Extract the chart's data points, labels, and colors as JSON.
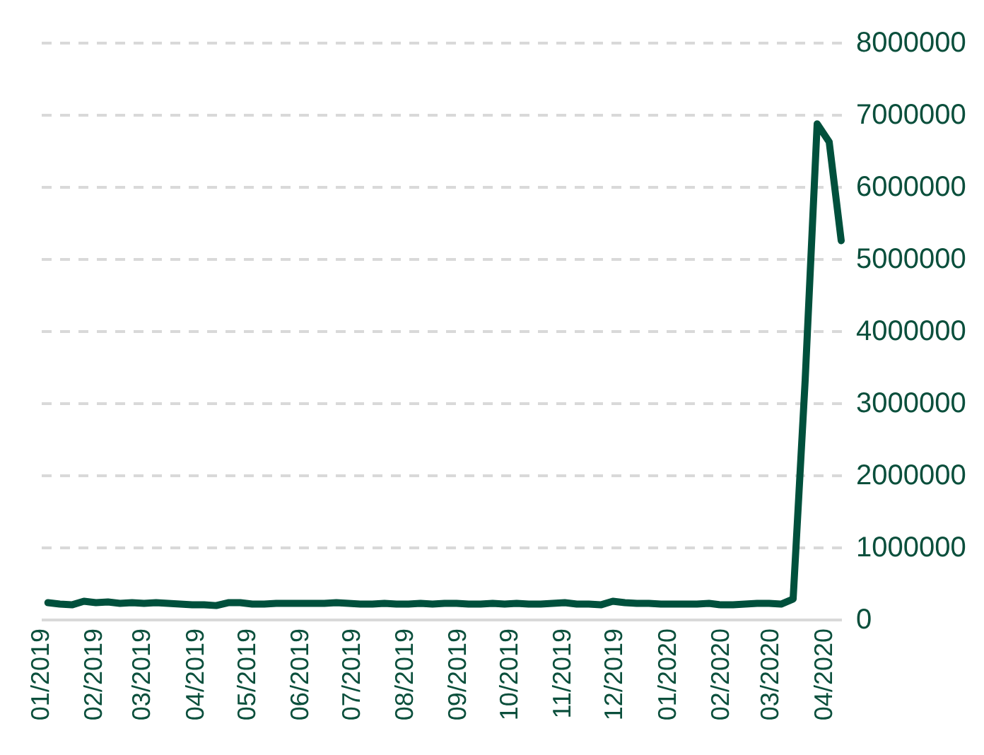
{
  "chart_data": {
    "type": "line",
    "x": [
      "2019-01-05",
      "2019-01-12",
      "2019-01-19",
      "2019-01-26",
      "2019-02-02",
      "2019-02-09",
      "2019-02-16",
      "2019-02-23",
      "2019-03-02",
      "2019-03-09",
      "2019-03-16",
      "2019-03-23",
      "2019-03-30",
      "2019-04-06",
      "2019-04-13",
      "2019-04-20",
      "2019-04-27",
      "2019-05-04",
      "2019-05-11",
      "2019-05-18",
      "2019-05-25",
      "2019-06-01",
      "2019-06-08",
      "2019-06-15",
      "2019-06-22",
      "2019-06-29",
      "2019-07-06",
      "2019-07-13",
      "2019-07-20",
      "2019-07-27",
      "2019-08-03",
      "2019-08-10",
      "2019-08-17",
      "2019-08-24",
      "2019-08-31",
      "2019-09-07",
      "2019-09-14",
      "2019-09-21",
      "2019-09-28",
      "2019-10-05",
      "2019-10-12",
      "2019-10-19",
      "2019-10-26",
      "2019-11-02",
      "2019-11-09",
      "2019-11-16",
      "2019-11-23",
      "2019-11-30",
      "2019-12-07",
      "2019-12-14",
      "2019-12-21",
      "2019-12-28",
      "2020-01-04",
      "2020-01-11",
      "2020-01-18",
      "2020-01-25",
      "2020-02-01",
      "2020-02-08",
      "2020-02-15",
      "2020-02-22",
      "2020-02-29",
      "2020-03-07",
      "2020-03-14",
      "2020-03-21",
      "2020-03-28",
      "2020-04-04",
      "2020-04-11"
    ],
    "series": [
      {
        "color": "#00503c",
        "values": [
          230000,
          210000,
          200000,
          250000,
          230000,
          240000,
          220000,
          230000,
          220000,
          230000,
          220000,
          210000,
          200000,
          200000,
          190000,
          230000,
          230000,
          210000,
          210000,
          220000,
          220000,
          220000,
          220000,
          220000,
          230000,
          220000,
          210000,
          210000,
          220000,
          210000,
          210000,
          220000,
          210000,
          220000,
          220000,
          210000,
          210000,
          220000,
          210000,
          220000,
          210000,
          210000,
          220000,
          230000,
          210000,
          210000,
          200000,
          250000,
          230000,
          220000,
          220000,
          210000,
          210000,
          210000,
          210000,
          220000,
          200000,
          200000,
          210000,
          220000,
          220000,
          210000,
          280000,
          3310000,
          6870000,
          6620000,
          5250000
        ]
      }
    ],
    "xlim": [
      "2019-01-01",
      "2020-04-11"
    ],
    "xticks": [
      {
        "value": "2019-01-01",
        "label": "01/2019"
      },
      {
        "value": "2019-02-01",
        "label": "02/2019"
      },
      {
        "value": "2019-03-01",
        "label": "03/2019"
      },
      {
        "value": "2019-04-01",
        "label": "04/2019"
      },
      {
        "value": "2019-05-01",
        "label": "05/2019"
      },
      {
        "value": "2019-06-01",
        "label": "06/2019"
      },
      {
        "value": "2019-07-01",
        "label": "07/2019"
      },
      {
        "value": "2019-08-01",
        "label": "08/2019"
      },
      {
        "value": "2019-09-01",
        "label": "09/2019"
      },
      {
        "value": "2019-10-01",
        "label": "10/2019"
      },
      {
        "value": "2019-11-01",
        "label": "11/2019"
      },
      {
        "value": "2019-12-01",
        "label": "12/2019"
      },
      {
        "value": "2020-01-01",
        "label": "01/2020"
      },
      {
        "value": "2020-02-01",
        "label": "02/2020"
      },
      {
        "value": "2020-03-01",
        "label": "03/2020"
      },
      {
        "value": "2020-04-01",
        "label": "04/2020"
      }
    ],
    "ylim": [
      0,
      8000000
    ],
    "yticks": [
      0,
      1000000,
      2000000,
      3000000,
      4000000,
      5000000,
      6000000,
      7000000,
      8000000
    ],
    "grid": "y",
    "marker": "none",
    "line_style": "solid"
  }
}
